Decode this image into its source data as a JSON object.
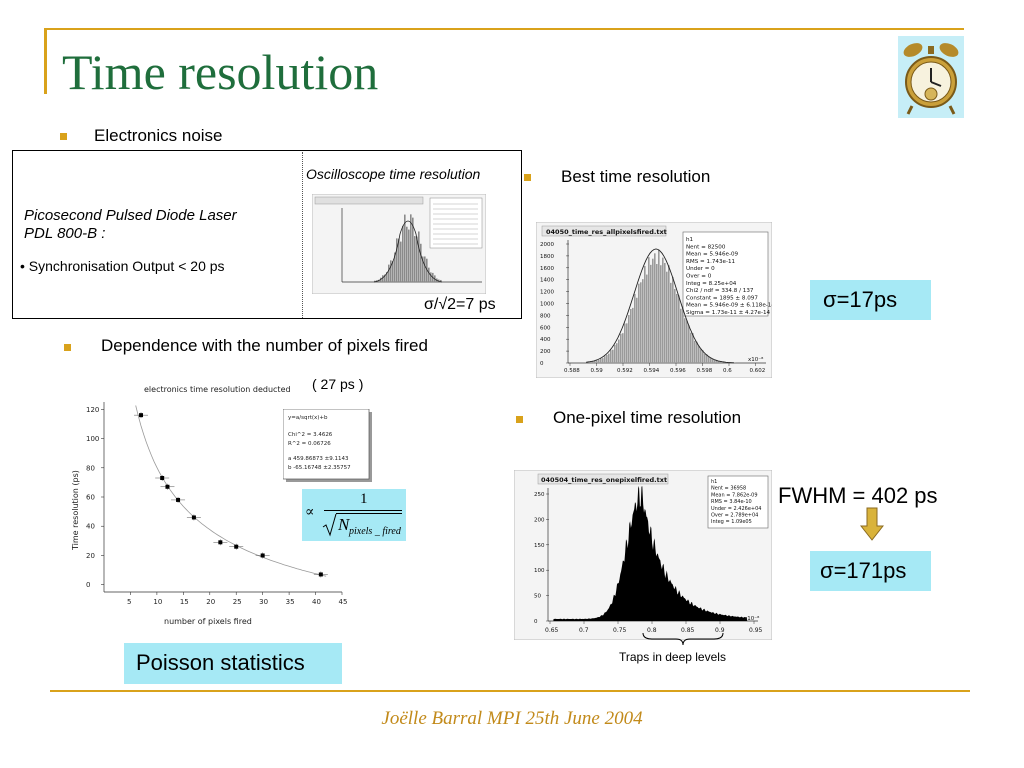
{
  "slide": {
    "title": "Time resolution",
    "footer": "Joëlle Barral MPI 25th June 2004"
  },
  "colors": {
    "title": "#1f6e3c",
    "bullet": "#d9a21b",
    "rule": "#d9a21b",
    "highlight": "#a6e9f5",
    "arrow": "#d9b33b"
  },
  "icons": {
    "corner": "alarm-clock-icon"
  },
  "electronics": {
    "bullet": "Electronics noise",
    "laser_title_1": "Picosecond Pulsed Diode Laser",
    "laser_title_2": "PDL 800-B :",
    "laser_sync": "• Synchronisation Output < 20 ps",
    "scope_label": "Oscilloscope time resolution",
    "scope_result": "σ/√2=7 ps"
  },
  "best": {
    "bullet": "Best time resolution",
    "hist_title": "04050_time_res_allpixelsfired.txt",
    "stats": [
      "h1",
      "Nent = 82500",
      "Mean = 5.946e-09",
      "RMS = 1.743e-11",
      "Under = 0",
      "Over = 0",
      "Integ = 8.25e+04",
      "Chi2 / ndf = 334.8 / 137",
      "Constant = 1895 ± 8.097",
      "Mean = 5.946e-09 ± 6.118e-14",
      "Sigma = 1.73e-11 ± 4.27e-14"
    ],
    "yticks": [
      "2000",
      "1800",
      "1600",
      "1400",
      "1200",
      "1000",
      "800",
      "600",
      "400",
      "200",
      "0"
    ],
    "xticks": [
      "0.588",
      "0.59",
      "0.592",
      "0.594",
      "0.596",
      "0.598",
      "0.6",
      "0.602"
    ],
    "xexp": "x10⁻⁸",
    "sigma": "σ=17ps"
  },
  "dependence": {
    "bullet": "Dependence with the number of pixels fired",
    "note": "( 27 ps )",
    "fit_box": [
      "y=a/sqrt(x)+b",
      "Chi^2 = 3.4626",
      "R^2 = 0.06726",
      "a 459.86873 ±9.1143",
      "b -65.16748 ±2.35757"
    ],
    "formula_prop": "∝",
    "formula_num": "1",
    "formula_sym": "N",
    "formula_sub": "pixels _ fired",
    "poisson": "Poisson statistics"
  },
  "one_pixel": {
    "bullet": "One-pixel time resolution",
    "hist_title": "040504_time_res_onepixelfired.txt",
    "stats": [
      "h1",
      "Nent = 36958",
      "Mean = 7.862e-09",
      "RMS = 3.84e-10",
      "Under = 2.426e+04",
      "Over = 2.789e+04",
      "Integ = 1.09e05"
    ],
    "yticks": [
      "250",
      "200",
      "150",
      "100",
      "50",
      "0"
    ],
    "xticks": [
      "0.65",
      "0.7",
      "0.75",
      "0.8",
      "0.85",
      "0.9",
      "0.95"
    ],
    "xexp": "x10⁻⁸",
    "fwhm": "FWHM = 402 ps",
    "sigma": "σ=171ps",
    "traps": "Traps in deep levels"
  },
  "chart_data": [
    {
      "type": "scatter",
      "title": "electronics time resolution deducted",
      "xlabel": "number of pixels fired",
      "ylabel": "Time resolution (ps)",
      "xlim": [
        0,
        45
      ],
      "ylim": [
        -5,
        125
      ],
      "xticks": [
        5,
        10,
        15,
        20,
        25,
        30,
        35,
        40,
        45
      ],
      "yticks": [
        0,
        20,
        40,
        60,
        80,
        100,
        120
      ],
      "series": [
        {
          "x": [
            7,
            11,
            12,
            14,
            17,
            22,
            25,
            30,
            41
          ],
          "y": [
            116,
            73,
            67,
            58,
            46,
            29,
            26,
            20,
            7
          ]
        }
      ],
      "fit": {
        "a": 459.86873,
        "b": -65.16748
      }
    },
    {
      "type": "bar",
      "title": "040504_time_res_onepixelfired.txt",
      "xlabel": "",
      "ylabel": "",
      "xlim": [
        0.65,
        0.95
      ],
      "ylim": [
        0,
        260
      ],
      "description_values": {
        "peak_x": 0.785,
        "peak_y": 245
      }
    }
  ]
}
